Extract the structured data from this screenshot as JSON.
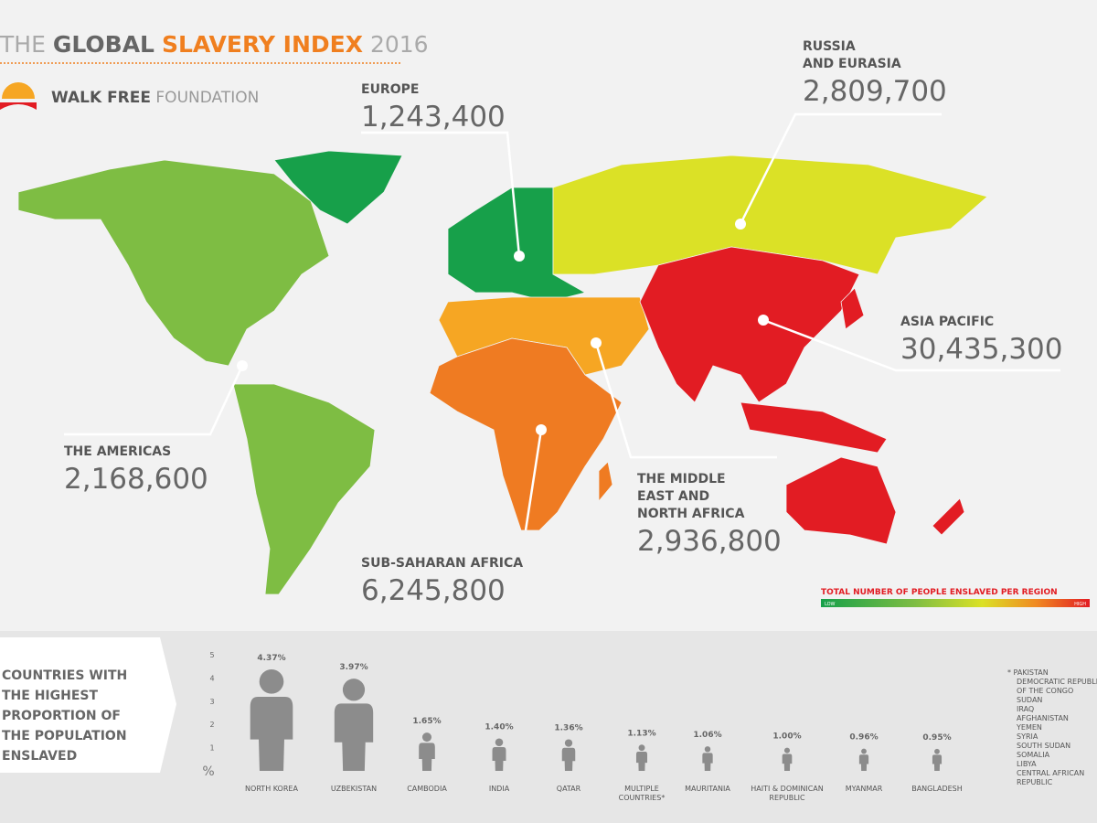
{
  "header": {
    "title": [
      "THE",
      "GLOBAL",
      "SLAVERY INDEX",
      "2016"
    ],
    "logo": [
      "WALK FREE",
      "FOUNDATION"
    ]
  },
  "regions": [
    {
      "name": [
        "EUROPE"
      ],
      "value": "1,243,400"
    },
    {
      "name": [
        "RUSSIA",
        "AND EURASIA"
      ],
      "value": "2,809,700"
    },
    {
      "name": [
        "ASIA PACIFIC"
      ],
      "value": "30,435,300"
    },
    {
      "name": [
        "THE AMERICAS"
      ],
      "value": "2,168,600"
    },
    {
      "name": [
        "THE MIDDLE",
        "EAST AND",
        "NORTH AFRICA"
      ],
      "value": "2,936,800"
    },
    {
      "name": [
        "SUB-SAHARAN AFRICA"
      ],
      "value": "6,245,800"
    }
  ],
  "legend": {
    "title": "TOTAL NUMBER OF PEOPLE ENSLAVED PER REGION",
    "low": "LOW",
    "high": "HIGH"
  },
  "chart_data": {
    "type": "pictogram",
    "title": [
      "COUNTRIES WITH",
      "THE HIGHEST",
      "PROPORTION OF",
      "THE POPULATION",
      "ENSLAVED"
    ],
    "categories": [
      [
        "NORTH KOREA"
      ],
      [
        "UZBEKISTAN"
      ],
      [
        "CAMBODIA"
      ],
      [
        "INDIA"
      ],
      [
        "QATAR"
      ],
      [
        "MULTIPLE",
        "COUNTRIES*"
      ],
      [
        "MAURITANIA"
      ],
      [
        "HAITI & DOMINICAN",
        "REPUBLIC"
      ],
      [
        "MYANMAR"
      ],
      [
        "BANGLADESH"
      ]
    ],
    "values": [
      4.37,
      3.97,
      1.65,
      1.4,
      1.36,
      1.13,
      1.06,
      1.0,
      0.96,
      0.95
    ],
    "value_labels": [
      "4.37%",
      "3.97%",
      "1.65%",
      "1.40%",
      "1.36%",
      "1.13%",
      "1.06%",
      "1.00%",
      "0.96%",
      "0.95%"
    ],
    "color": "#8c8c8c",
    "ylim": [
      0,
      5
    ],
    "yticks": [
      1,
      2,
      3,
      4,
      5
    ],
    "y_unit": "%",
    "footnote": [
      "* PAKISTAN",
      "DEMOCRATIC REPUBLIC",
      "OF THE CONGO",
      "SUDAN",
      "IRAQ",
      "AFGHANISTAN",
      "YEMEN",
      "SYRIA",
      "SOUTH SUDAN",
      "SOMALIA",
      "LIBYA",
      "CENTRAL AFRICAN",
      "REPUBLIC"
    ]
  }
}
